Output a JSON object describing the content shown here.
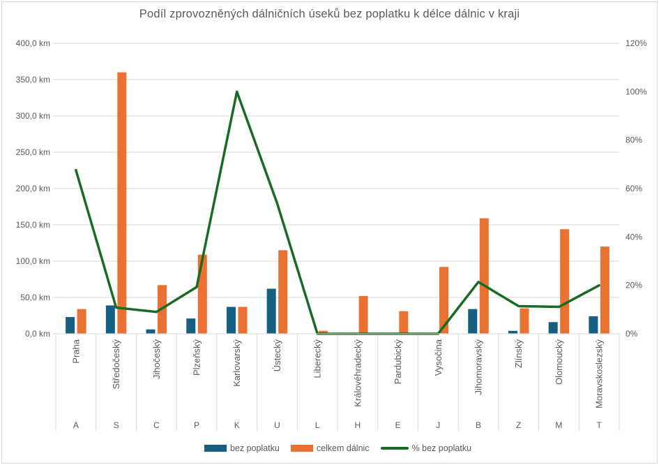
{
  "chart_data": {
    "type": "bar+line combo",
    "title": "Podíl zprovozněných dálničních úseků bez poplatku k délce dálnic v kraji",
    "categories": [
      {
        "name": "Praha",
        "letter": "A"
      },
      {
        "name": "Středočeský",
        "letter": "S"
      },
      {
        "name": "Jihočeský",
        "letter": "C"
      },
      {
        "name": "Plzeňský",
        "letter": "P"
      },
      {
        "name": "Karlovarský",
        "letter": "K"
      },
      {
        "name": "Ústecký",
        "letter": "U"
      },
      {
        "name": "Liberecký",
        "letter": "L"
      },
      {
        "name": "Královéhradecký",
        "letter": "H"
      },
      {
        "name": "Pardubický",
        "letter": "E"
      },
      {
        "name": "Vysočina",
        "letter": "J"
      },
      {
        "name": "Jihomoravský",
        "letter": "B"
      },
      {
        "name": "Zlínský",
        "letter": "Z"
      },
      {
        "name": "Olomoucký",
        "letter": "M"
      },
      {
        "name": "Moravskoslezský",
        "letter": "T"
      }
    ],
    "series": [
      {
        "name": "bez poplatku",
        "type": "bar",
        "axis": "left",
        "unit": "km",
        "color": "#156082",
        "values": [
          23,
          39,
          6,
          21,
          37,
          62,
          0,
          0,
          0,
          0,
          34,
          4,
          16,
          24
        ]
      },
      {
        "name": "celkem dálnic",
        "type": "bar",
        "axis": "left",
        "unit": "km",
        "color": "#E97132",
        "values": [
          34,
          360,
          67,
          109,
          37,
          115,
          4,
          52,
          31,
          92,
          159,
          35,
          144,
          120
        ]
      },
      {
        "name": "% bez poplatku",
        "type": "line",
        "axis": "right",
        "unit": "%",
        "color": "#196B24",
        "values": [
          67.6,
          10.8,
          9,
          19.3,
          100,
          53.9,
          0,
          0,
          0,
          0,
          21.4,
          11.4,
          11.1,
          20
        ]
      }
    ],
    "left_axis": {
      "min": 0,
      "max": 400,
      "unit": "km",
      "ticks": [
        "400,0 km",
        "350,0 km",
        "300,0 km",
        "250,0 km",
        "200,0 km",
        "150,0 km",
        "100,0 km",
        "50,0 km",
        "0,0 km"
      ]
    },
    "right_axis": {
      "min": 0,
      "max": 120,
      "unit": "%",
      "ticks": [
        "120%",
        "100%",
        "80%",
        "60%",
        "40%",
        "20%",
        "0%"
      ]
    },
    "legend": [
      "bez poplatku",
      "celkem dálnic",
      "% bez poplatku"
    ],
    "grid": true,
    "legend_position": "bottom"
  },
  "colors": {
    "bar_bez_poplatku": "#156082",
    "bar_celkem_dalnic": "#E97132",
    "line_pct": "#196B24",
    "gridline": "#D9D9D9",
    "axis_text": "#595959",
    "title_text": "#595959",
    "background": "#FFFFFF"
  }
}
